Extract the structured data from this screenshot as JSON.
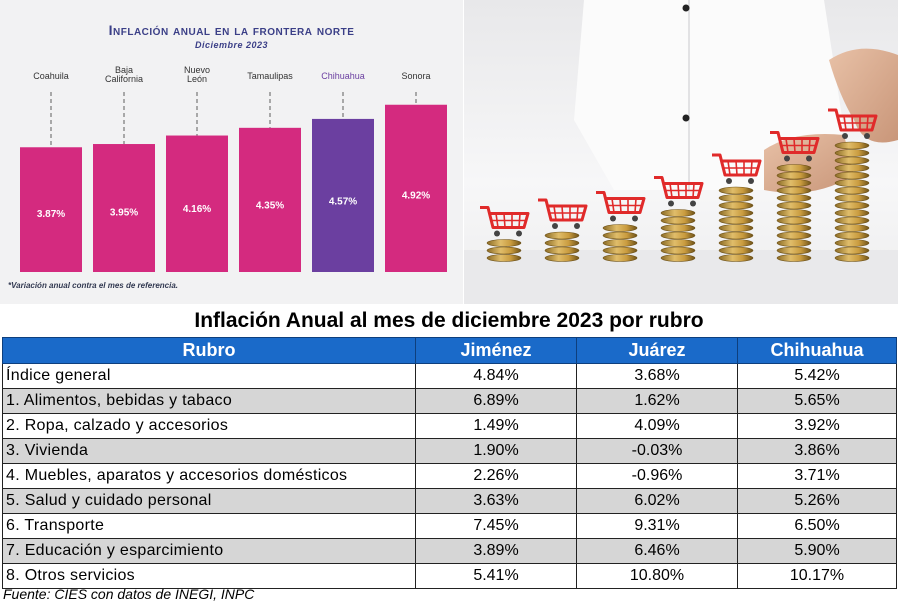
{
  "chart_data": {
    "type": "bar",
    "title": "Inflación anual en la frontera norte",
    "subtitle": "Diciembre 2023",
    "categories": [
      "Coahuila",
      "Baja California",
      "Nuevo León",
      "Tamaulipas",
      "Chihuahua",
      "Sonora"
    ],
    "category_lines": [
      [
        "Coahuila"
      ],
      [
        "Baja",
        "California"
      ],
      [
        "Nuevo",
        "León"
      ],
      [
        "Tamaulipas"
      ],
      [
        "Chihuahua"
      ],
      [
        "Sonora"
      ]
    ],
    "values": [
      3.87,
      3.95,
      4.16,
      4.35,
      4.57,
      4.92
    ],
    "value_labels": [
      "3.87%",
      "3.95%",
      "4.16%",
      "4.35%",
      "4.57%",
      "4.92%"
    ],
    "highlight_category": "Chihuahua",
    "colors": {
      "bar": "#d42a7f",
      "highlight": "#6b3fa0",
      "label": "#ffffff"
    },
    "footnote": "*Variación anual contra el mes de referencia."
  },
  "table": {
    "title": "Inflación Anual al mes de diciembre 2023 por rubro",
    "headers": [
      "Rubro",
      "Jiménez",
      "Juárez",
      "Chihuahua"
    ],
    "rows": [
      [
        "Índice general",
        "4.84%",
        "3.68%",
        "5.42%"
      ],
      [
        "1. Alimentos, bebidas y tabaco",
        "6.89%",
        "1.62%",
        "5.65%"
      ],
      [
        "2. Ropa, calzado y accesorios",
        "1.49%",
        "4.09%",
        "3.92%"
      ],
      [
        "3. Vivienda",
        "1.90%",
        "-0.03%",
        "3.86%"
      ],
      [
        "4. Muebles, aparatos y accesorios domésticos",
        "2.26%",
        "-0.96%",
        "3.71%"
      ],
      [
        "5. Salud y cuidado personal",
        "3.63%",
        "6.02%",
        "5.26%"
      ],
      [
        "6. Transporte",
        "7.45%",
        "9.31%",
        "6.50%"
      ],
      [
        "7. Educación y esparcimiento",
        "3.89%",
        "6.46%",
        "5.90%"
      ],
      [
        "8. Otros servicios",
        "5.41%",
        "10.80%",
        "10.17%"
      ]
    ],
    "source": "Fuente: CIES con datos de INEGI, INPC"
  },
  "photo": {
    "icon": "shopping-cart-icon",
    "coin_stacks": [
      3,
      4,
      5,
      7,
      10,
      13,
      16
    ]
  }
}
